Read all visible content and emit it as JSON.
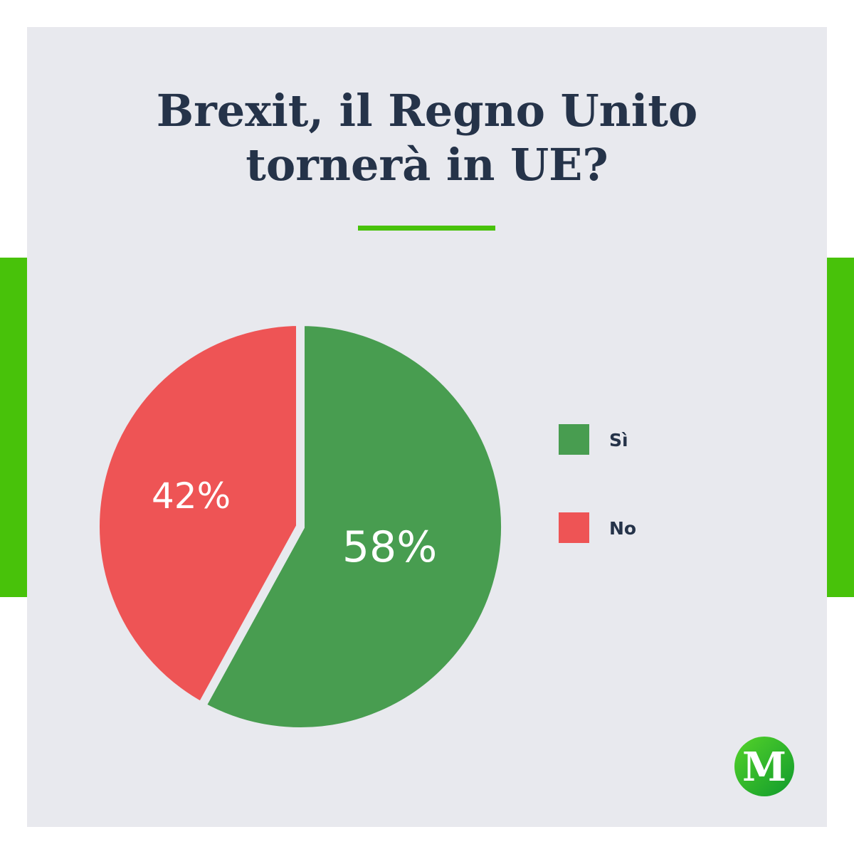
{
  "header": {
    "title_line1": "Brexit, il Regno Unito",
    "title_line2": "tornerà in UE?"
  },
  "colors": {
    "accent": "#48c20a",
    "background": "#e8e9ee",
    "title": "#253349",
    "si": "#489d50",
    "no": "#ee5455"
  },
  "chart_data": {
    "type": "pie",
    "title": "Brexit, il Regno Unito tornerà in UE?",
    "start": "12 o'clock, clockwise",
    "slices": [
      {
        "label": "Sì",
        "value": 58,
        "display": "58%",
        "color": "#489d50"
      },
      {
        "label": "No",
        "value": 42,
        "display": "42%",
        "color": "#ee5455"
      }
    ],
    "legend": {
      "placement": "right",
      "entries": [
        "Sì",
        "No"
      ]
    }
  },
  "logo": {
    "letter": "M",
    "icon": "brand-logo-icon"
  }
}
